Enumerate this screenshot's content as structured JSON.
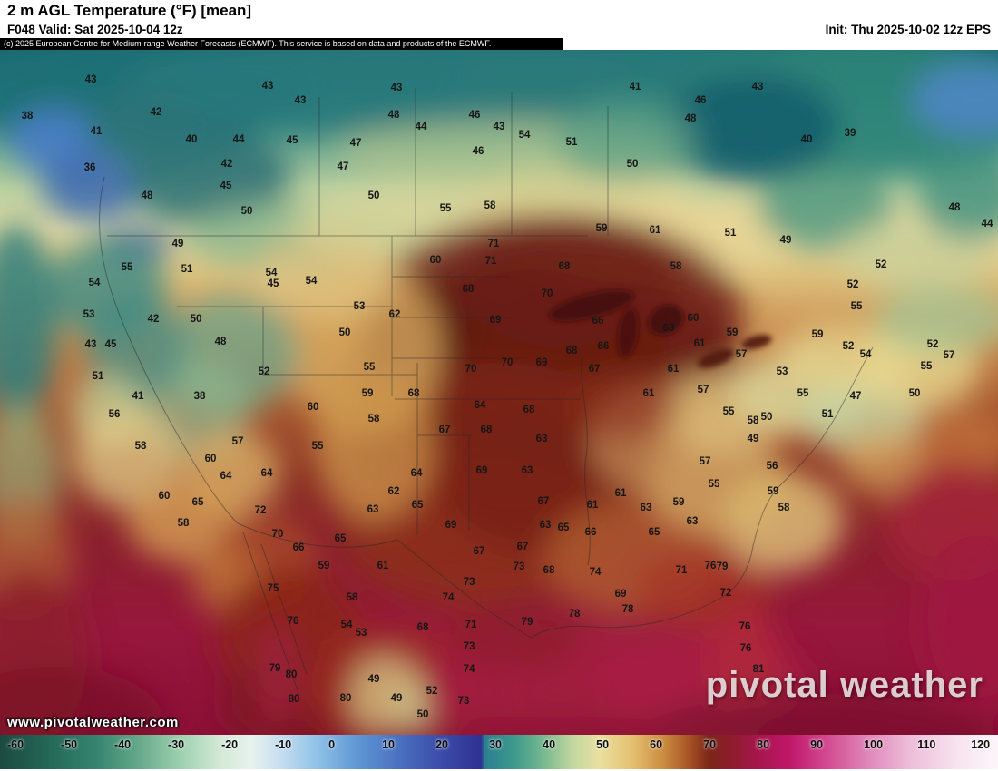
{
  "header": {
    "title": "2 m AGL Temperature (°F) [mean]",
    "valid": "F048 Valid: Sat 2025-10-04 12z",
    "init": "Init: Thu 2025-10-02 12z EPS",
    "copyright": "(c) 2025 European Centre for Medium-range Weather Forecasts (ECMWF). This service is based on data and products of the ECMWF."
  },
  "map": {
    "watermark": "www.pivotalweather.com",
    "logo": "pivotal weather",
    "units": "°F",
    "temperature_labels": [
      [
        43,
        100,
        36
      ],
      [
        38,
        30,
        76
      ],
      [
        41,
        106,
        93
      ],
      [
        36,
        99,
        133
      ],
      [
        42,
        172,
        72
      ],
      [
        40,
        211,
        102
      ],
      [
        44,
        263,
        102
      ],
      [
        42,
        250,
        129
      ],
      [
        45,
        249,
        153
      ],
      [
        48,
        162,
        164
      ],
      [
        50,
        272,
        181
      ],
      [
        43,
        295,
        43
      ],
      [
        43,
        331,
        59
      ],
      [
        45,
        322,
        103
      ],
      [
        47,
        392,
        106
      ],
      [
        47,
        378,
        132
      ],
      [
        50,
        412,
        164
      ],
      [
        43,
        437,
        45
      ],
      [
        48,
        434,
        75
      ],
      [
        44,
        464,
        88
      ],
      [
        46,
        523,
        75
      ],
      [
        43,
        550,
        88
      ],
      [
        46,
        527,
        115
      ],
      [
        54,
        578,
        97
      ],
      [
        51,
        630,
        105
      ],
      [
        50,
        697,
        129
      ],
      [
        55,
        491,
        178
      ],
      [
        58,
        540,
        175
      ],
      [
        41,
        700,
        44
      ],
      [
        46,
        772,
        59
      ],
      [
        43,
        835,
        44
      ],
      [
        48,
        761,
        79
      ],
      [
        40,
        889,
        102
      ],
      [
        39,
        937,
        95
      ],
      [
        48,
        1052,
        177
      ],
      [
        44,
        1088,
        195
      ],
      [
        51,
        805,
        205
      ],
      [
        49,
        866,
        213
      ],
      [
        59,
        663,
        200
      ],
      [
        61,
        722,
        202
      ],
      [
        58,
        745,
        242
      ],
      [
        52,
        971,
        240
      ],
      [
        52,
        940,
        262
      ],
      [
        55,
        944,
        286
      ],
      [
        49,
        196,
        217
      ],
      [
        51,
        206,
        245
      ],
      [
        55,
        140,
        243
      ],
      [
        54,
        104,
        260
      ],
      [
        53,
        98,
        295
      ],
      [
        42,
        169,
        300
      ],
      [
        50,
        216,
        300
      ],
      [
        48,
        243,
        325
      ],
      [
        43,
        100,
        328
      ],
      [
        45,
        122,
        328
      ],
      [
        54,
        299,
        249
      ],
      [
        45,
        301,
        261
      ],
      [
        54,
        343,
        258
      ],
      [
        53,
        396,
        286
      ],
      [
        62,
        435,
        295
      ],
      [
        50,
        380,
        315
      ],
      [
        52,
        291,
        358
      ],
      [
        55,
        407,
        353
      ],
      [
        60,
        480,
        235
      ],
      [
        71,
        544,
        217
      ],
      [
        71,
        541,
        236
      ],
      [
        68,
        516,
        267
      ],
      [
        69,
        546,
        301
      ],
      [
        70,
        603,
        272
      ],
      [
        68,
        622,
        242
      ],
      [
        66,
        659,
        302
      ],
      [
        66,
        665,
        330
      ],
      [
        63,
        737,
        310
      ],
      [
        60,
        764,
        299
      ],
      [
        59,
        807,
        315
      ],
      [
        61,
        771,
        327
      ],
      [
        57,
        817,
        339
      ],
      [
        59,
        901,
        317
      ],
      [
        52,
        935,
        330
      ],
      [
        54,
        954,
        339
      ],
      [
        52,
        1028,
        328
      ],
      [
        55,
        1021,
        352
      ],
      [
        57,
        1046,
        340
      ],
      [
        53,
        862,
        358
      ],
      [
        55,
        885,
        382
      ],
      [
        51,
        912,
        405
      ],
      [
        47,
        943,
        385
      ],
      [
        50,
        1008,
        382
      ],
      [
        70,
        519,
        355
      ],
      [
        70,
        559,
        348
      ],
      [
        69,
        597,
        348
      ],
      [
        68,
        630,
        335
      ],
      [
        67,
        655,
        355
      ],
      [
        68,
        456,
        382
      ],
      [
        64,
        529,
        395
      ],
      [
        68,
        583,
        400
      ],
      [
        61,
        742,
        355
      ],
      [
        61,
        715,
        382
      ],
      [
        57,
        775,
        378
      ],
      [
        55,
        803,
        402
      ],
      [
        58,
        830,
        412
      ],
      [
        50,
        845,
        408
      ],
      [
        49,
        830,
        432
      ],
      [
        67,
        490,
        422
      ],
      [
        68,
        536,
        422
      ],
      [
        63,
        597,
        432
      ],
      [
        69,
        531,
        467
      ],
      [
        63,
        581,
        467
      ],
      [
        64,
        459,
        470
      ],
      [
        62,
        434,
        490
      ],
      [
        63,
        411,
        510
      ],
      [
        65,
        460,
        505
      ],
      [
        59,
        405,
        382
      ],
      [
        58,
        412,
        410
      ],
      [
        55,
        350,
        440
      ],
      [
        60,
        345,
        397
      ],
      [
        64,
        294,
        470
      ],
      [
        60,
        232,
        454
      ],
      [
        64,
        249,
        473
      ],
      [
        65,
        218,
        502
      ],
      [
        60,
        181,
        495
      ],
      [
        58,
        202,
        525
      ],
      [
        72,
        287,
        511
      ],
      [
        70,
        306,
        537
      ],
      [
        66,
        329,
        552
      ],
      [
        75,
        301,
        597
      ],
      [
        76,
        323,
        633
      ],
      [
        79,
        303,
        685
      ],
      [
        80,
        321,
        692
      ],
      [
        80,
        324,
        719
      ],
      [
        80,
        381,
        718
      ],
      [
        59,
        357,
        572
      ],
      [
        58,
        388,
        607
      ],
      [
        54,
        382,
        637
      ],
      [
        53,
        398,
        646
      ],
      [
        61,
        422,
        572
      ],
      [
        65,
        375,
        542
      ],
      [
        68,
        466,
        640
      ],
      [
        49,
        412,
        697
      ],
      [
        49,
        437,
        718
      ],
      [
        52,
        476,
        710
      ],
      [
        50,
        466,
        736
      ],
      [
        73,
        517,
        590
      ],
      [
        74,
        494,
        607
      ],
      [
        71,
        519,
        637
      ],
      [
        73,
        517,
        661
      ],
      [
        74,
        517,
        686
      ],
      [
        73,
        511,
        721
      ],
      [
        69,
        497,
        527
      ],
      [
        67,
        528,
        556
      ],
      [
        67,
        576,
        551
      ],
      [
        73,
        572,
        573
      ],
      [
        63,
        601,
        527
      ],
      [
        67,
        599,
        501
      ],
      [
        65,
        621,
        530
      ],
      [
        66,
        651,
        535
      ],
      [
        61,
        653,
        505
      ],
      [
        61,
        684,
        492
      ],
      [
        63,
        712,
        508
      ],
      [
        59,
        748,
        502
      ],
      [
        65,
        721,
        535
      ],
      [
        68,
        605,
        577
      ],
      [
        74,
        656,
        579
      ],
      [
        71,
        751,
        577
      ],
      [
        79,
        581,
        634
      ],
      [
        78,
        633,
        625
      ],
      [
        78,
        692,
        620
      ],
      [
        69,
        684,
        603
      ],
      [
        76,
        783,
        572
      ],
      [
        79,
        796,
        573
      ],
      [
        72,
        800,
        602
      ],
      [
        76,
        821,
        639
      ],
      [
        76,
        822,
        663
      ],
      [
        81,
        836,
        686
      ],
      [
        56,
        851,
        462
      ],
      [
        59,
        852,
        490
      ],
      [
        58,
        864,
        508
      ],
      [
        63,
        763,
        523
      ],
      [
        55,
        787,
        482
      ],
      [
        57,
        777,
        457
      ],
      [
        56,
        126,
        405
      ],
      [
        58,
        155,
        440
      ],
      [
        57,
        262,
        435
      ],
      [
        41,
        152,
        385
      ],
      [
        38,
        220,
        385
      ],
      [
        51,
        108,
        363
      ]
    ]
  },
  "colorbar": {
    "unit": "°F",
    "ticks": [
      "-60",
      "-50",
      "-40",
      "-30",
      "-20",
      "-10",
      "0",
      "10",
      "20",
      "30",
      "40",
      "50",
      "60",
      "70",
      "80",
      "90",
      "100",
      "110",
      "120"
    ],
    "gradient_stops": [
      [
        "0%",
        "#1c4a41"
      ],
      [
        "5.3%",
        "#256a59"
      ],
      [
        "9.5%",
        "#35836f"
      ],
      [
        "13.7%",
        "#62a788"
      ],
      [
        "17.9%",
        "#9bcfad"
      ],
      [
        "22.1%",
        "#d4ead6"
      ],
      [
        "25.3%",
        "#e7f2ee"
      ],
      [
        "28.4%",
        "#c2dcf0"
      ],
      [
        "31.6%",
        "#92c3e8"
      ],
      [
        "35.8%",
        "#5f97d5"
      ],
      [
        "40%",
        "#4a70c0"
      ],
      [
        "44.2%",
        "#3b4ba9"
      ],
      [
        "47.4%",
        "#323697"
      ],
      [
        "48.2%",
        "#2e3193"
      ],
      [
        "48.6%",
        "#2c8090"
      ],
      [
        "51.6%",
        "#3d9a8c"
      ],
      [
        "54.7%",
        "#7cbb90"
      ],
      [
        "57.4%",
        "#c2d8a0"
      ],
      [
        "60%",
        "#e9e0a0"
      ],
      [
        "63.2%",
        "#e5c272"
      ],
      [
        "66.3%",
        "#cd8f42"
      ],
      [
        "69%",
        "#a85426"
      ],
      [
        "71.1%",
        "#7c2618"
      ],
      [
        "73.2%",
        "#8d1c2c"
      ],
      [
        "75.8%",
        "#a5164b"
      ],
      [
        "79%",
        "#bf1668"
      ],
      [
        "82.6%",
        "#d2468e"
      ],
      [
        "86.8%",
        "#df85b8"
      ],
      [
        "91.1%",
        "#edbcd8"
      ],
      [
        "95.8%",
        "#f7e3ef"
      ],
      [
        "100%",
        "#fdf5fa"
      ]
    ]
  }
}
